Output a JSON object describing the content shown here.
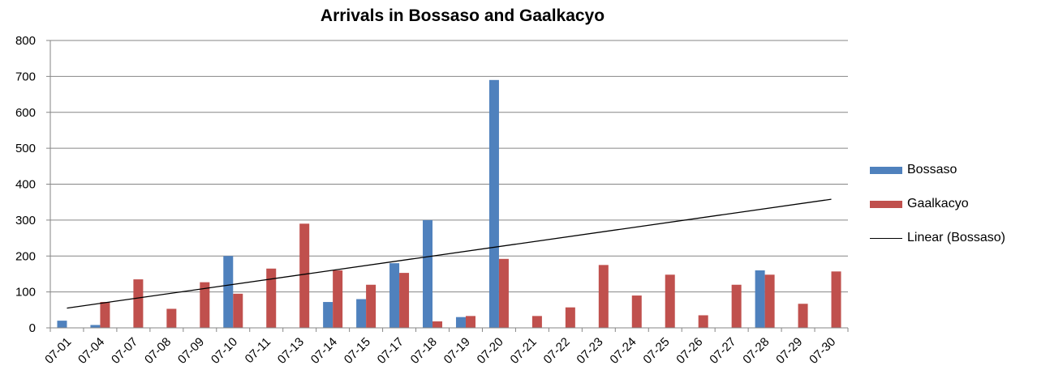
{
  "chart_data": {
    "type": "bar",
    "title": "Arrivals in Bossaso and Gaalkacyo",
    "xlabel": "",
    "ylabel": "",
    "ylim": [
      0,
      800
    ],
    "yticks": [
      0,
      100,
      200,
      300,
      400,
      500,
      600,
      700,
      800
    ],
    "grid": true,
    "legend_position": "right",
    "categories": [
      "07-01",
      "07-04",
      "07-07",
      "07-08",
      "07-09",
      "07-10",
      "07-11",
      "07-13",
      "07-14",
      "07-15",
      "07-17",
      "07-18",
      "07-19",
      "07-20",
      "07-21",
      "07-22",
      "07-23",
      "07-24",
      "07-25",
      "07-26",
      "07-27",
      "07-28",
      "07-29",
      "07-30"
    ],
    "series": [
      {
        "name": "Bossaso",
        "color": "#4F81BD",
        "values": [
          20,
          8,
          0,
          0,
          0,
          200,
          0,
          0,
          72,
          80,
          180,
          300,
          30,
          690,
          0,
          0,
          0,
          0,
          0,
          0,
          0,
          160,
          0,
          0
        ]
      },
      {
        "name": "Gaalkacyo",
        "color": "#C0504D",
        "values": [
          0,
          72,
          135,
          53,
          127,
          95,
          165,
          290,
          160,
          120,
          153,
          18,
          33,
          192,
          33,
          57,
          175,
          90,
          148,
          35,
          120,
          148,
          67,
          157
        ]
      }
    ],
    "trendline": {
      "name": "Linear (Bossaso)",
      "type": "linear",
      "color": "#000000",
      "start": 55,
      "end": 358
    }
  }
}
